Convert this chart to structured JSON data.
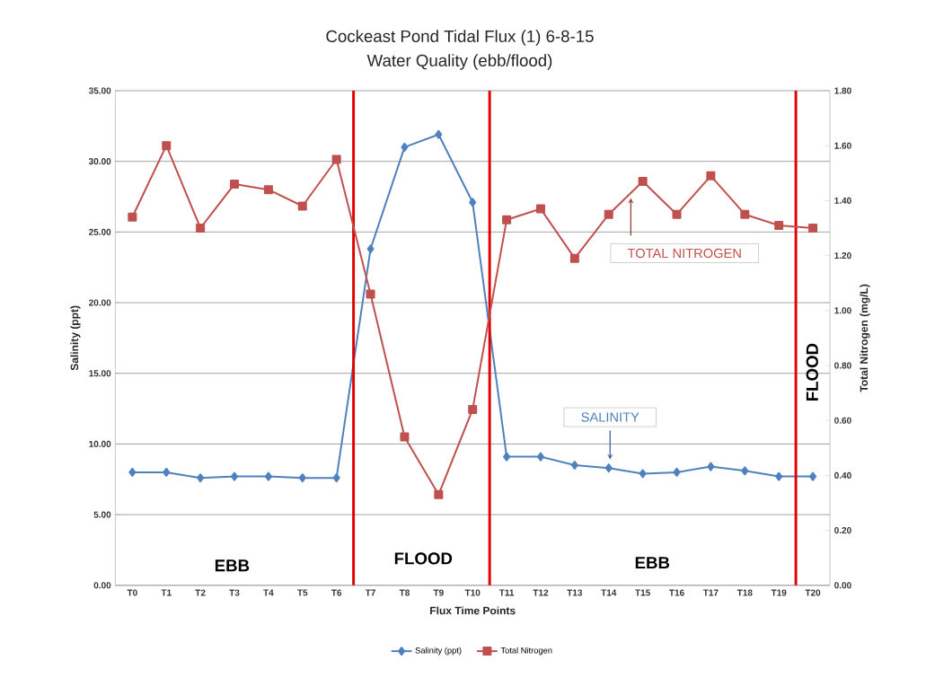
{
  "chart_data": {
    "type": "line",
    "title": "Cockeast Pond Tidal Flux (1) 6-8-15",
    "subtitle": "Water Quality (ebb/flood)",
    "xlabel": "Flux Time Points",
    "ylabel": "Salinity (ppt)",
    "y2label": "Total Nitrogen (mg/L)",
    "categories": [
      "T0",
      "T1",
      "T2",
      "T3",
      "T4",
      "T5",
      "T6",
      "T7",
      "T8",
      "T9",
      "T10",
      "T11",
      "T12",
      "T13",
      "T14",
      "T15",
      "T16",
      "T17",
      "T18",
      "T19",
      "T20"
    ],
    "series": [
      {
        "name": "Salinity (ppt)",
        "color": "#4f81bd",
        "marker": "diamond",
        "values": [
          8.0,
          8.0,
          7.6,
          7.7,
          7.7,
          7.6,
          7.6,
          23.8,
          31.0,
          31.9,
          27.1,
          9.1,
          9.1,
          8.5,
          8.3,
          7.9,
          8.0,
          8.4,
          8.1,
          7.7,
          7.7
        ]
      },
      {
        "name": "Total Nitrogen",
        "color": "#c0504d",
        "marker": "square",
        "axis": "y2",
        "values": [
          1.34,
          1.6,
          1.3,
          1.46,
          1.44,
          1.38,
          1.55,
          1.06,
          0.54,
          0.33,
          0.64,
          1.33,
          1.37,
          1.19,
          1.35,
          1.47,
          1.35,
          1.49,
          1.35,
          1.31,
          1.3
        ]
      }
    ],
    "ylim": [
      0,
      35
    ],
    "yticks": [
      {
        "value": 0,
        "label": "0.00"
      },
      {
        "value": 5,
        "label": "5.00"
      },
      {
        "value": 10,
        "label": "10.00"
      },
      {
        "value": 15,
        "label": "15.00"
      },
      {
        "value": 20,
        "label": "20.00"
      },
      {
        "value": 25,
        "label": "25.00"
      },
      {
        "value": 30,
        "label": "30.00"
      },
      {
        "value": 35,
        "label": "35.00"
      }
    ],
    "y2lim": [
      0,
      1.8
    ],
    "y2ticks": [
      {
        "value": 0,
        "label": "0.00"
      },
      {
        "value": 0.2,
        "label": "0.20"
      },
      {
        "value": 0.4,
        "label": "0.40"
      },
      {
        "value": 0.6,
        "label": "0.60"
      },
      {
        "value": 0.8,
        "label": "0.80"
      },
      {
        "value": 1.0,
        "label": "1.00"
      },
      {
        "value": 1.2,
        "label": "1.20"
      },
      {
        "value": 1.4,
        "label": "1.40"
      },
      {
        "value": 1.6,
        "label": "1.60"
      },
      {
        "value": 1.8,
        "label": "1.80"
      }
    ],
    "annotations": [
      "EBB",
      "FLOOD",
      "EBB",
      "FLOOD",
      "TOTAL NITROGEN",
      "SALINITY"
    ],
    "grid": "y",
    "legend": "bottom",
    "line_style": "solid"
  }
}
